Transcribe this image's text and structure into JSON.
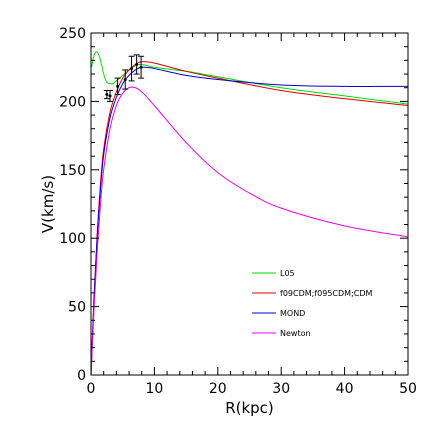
{
  "chart_data": {
    "type": "line",
    "title": "",
    "xlabel": "R(kpc)",
    "ylabel": "V(km/s)",
    "xlim": [
      0,
      50
    ],
    "ylim": [
      0,
      250
    ],
    "xticks": [
      0,
      10,
      20,
      30,
      40,
      50
    ],
    "yticks": [
      0,
      50,
      100,
      150,
      200,
      250
    ],
    "grid": false,
    "legend_position": "bottom-right",
    "series": [
      {
        "name": "L05",
        "color": "#00dd00",
        "x": [
          0.1,
          0.5,
          1.0,
          1.5,
          2.0,
          2.5,
          3.0,
          3.5,
          4.0,
          5.0,
          6.0,
          7.0,
          8.0,
          10,
          15,
          20,
          30,
          40,
          50
        ],
        "y": [
          225,
          234,
          236,
          230,
          220,
          214,
          213,
          213,
          215,
          219,
          223,
          226,
          227,
          225,
          222,
          218,
          210,
          204,
          198
        ]
      },
      {
        "name": "f09CDM;f095CDM;CDM",
        "color": "#dd0000",
        "x": [
          0,
          0.5,
          1,
          1.5,
          2,
          3,
          4,
          5,
          6,
          7,
          8,
          10,
          15,
          20,
          30,
          40,
          50
        ],
        "y": [
          0,
          60,
          105,
          140,
          165,
          192,
          207,
          217,
          223,
          227,
          229,
          228,
          222,
          217,
          208,
          202,
          197
        ]
      },
      {
        "name": "MOND",
        "color": "#0000cc",
        "x": [
          0,
          0.5,
          1,
          1.5,
          2,
          3,
          4,
          5,
          6,
          7,
          8,
          10,
          15,
          20,
          30,
          40,
          50
        ],
        "y": [
          0,
          58,
          102,
          136,
          161,
          188,
          203,
          213,
          219,
          223,
          225,
          224,
          219,
          216,
          212,
          211,
          211
        ]
      },
      {
        "name": "Newton",
        "color": "#ee00ee",
        "x": [
          0,
          0.5,
          1,
          1.5,
          2,
          3,
          4,
          5,
          6,
          7,
          8,
          10,
          15,
          20,
          25,
          30,
          40,
          50
        ],
        "y": [
          0,
          50,
          92,
          125,
          150,
          180,
          197,
          206,
          210,
          210,
          207,
          197,
          170,
          148,
          133,
          122,
          109,
          101
        ]
      }
    ],
    "observations": {
      "x": [
        2.5,
        3.0,
        4.2,
        5.4,
        6.4,
        7.2,
        7.9
      ],
      "y": [
        205,
        204,
        211,
        216,
        224,
        227,
        225
      ],
      "err": [
        3,
        4,
        6,
        7,
        9,
        7,
        8
      ]
    }
  }
}
